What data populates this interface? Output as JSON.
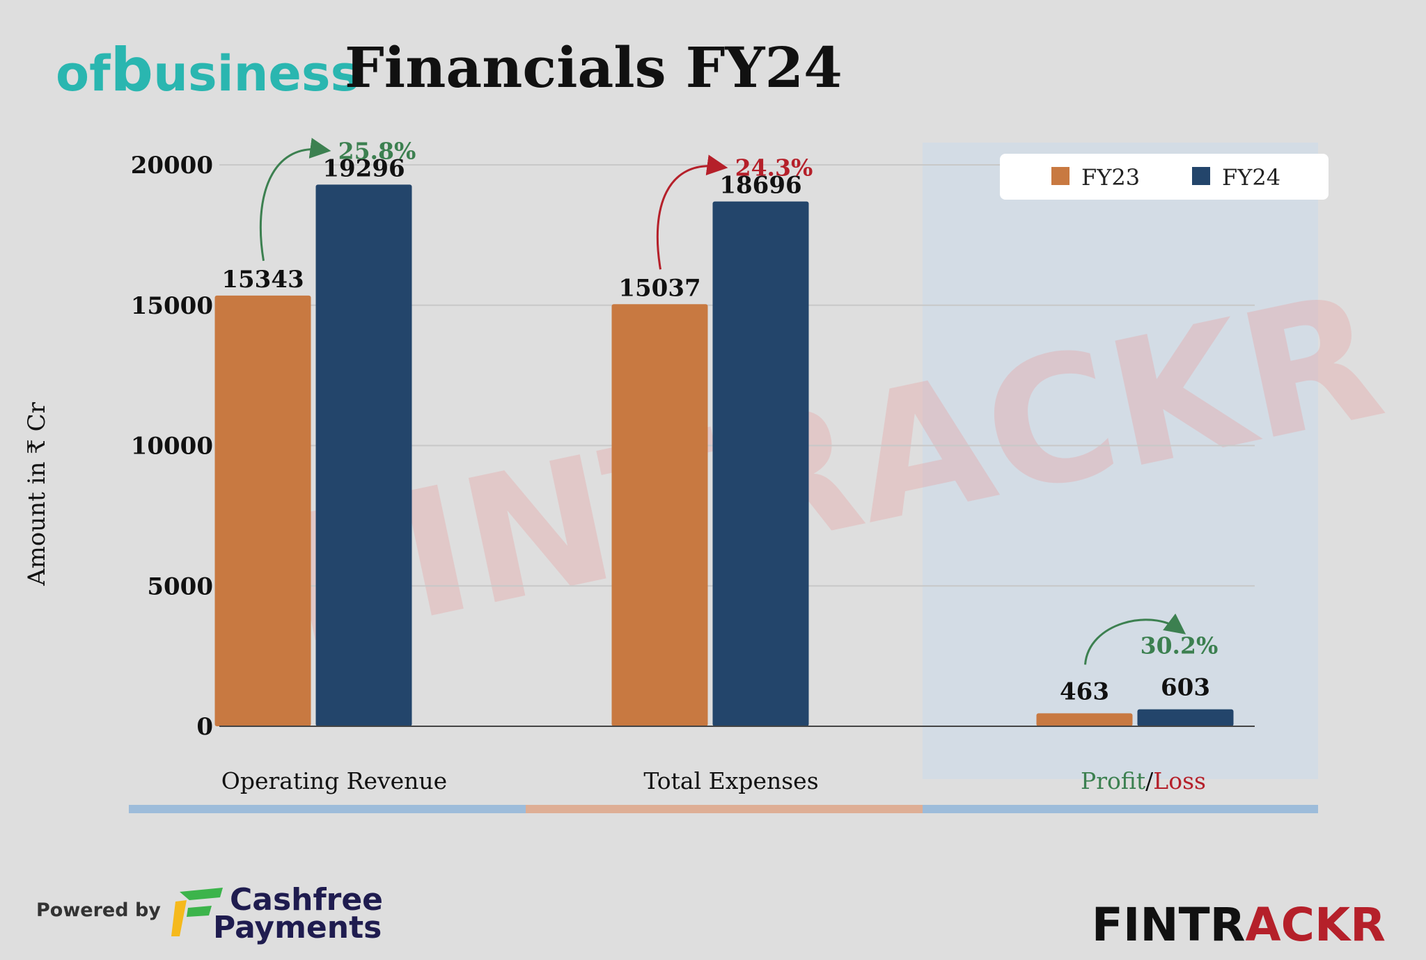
{
  "header": {
    "company_logo_prefix": "of",
    "company_logo_mid": "b",
    "company_logo_suffix": "usiness",
    "title": "Financials FY24"
  },
  "colors": {
    "fy23": "#c87941",
    "fy24": "#23456b",
    "growth_positive": "#3c8050",
    "growth_negative": "#b5202a",
    "logo_teal": "#2ab6b0",
    "watermark_red": "#e8a0a0",
    "underline_blue": "#9dbcda",
    "underline_orange": "#deae95",
    "fintrackr_dark": "#111111",
    "fintrackr_red": "#b5202a",
    "cashfree_navy": "#1f1c4f"
  },
  "chart_data": {
    "type": "bar",
    "ylabel": "Amount in ₹ Cr",
    "ylim": [
      0,
      20000
    ],
    "yticks": [
      0,
      5000,
      10000,
      15000,
      20000
    ],
    "grid": true,
    "legend_position": "top-right",
    "categories": [
      "Operating Revenue",
      "Total Expenses",
      "Profit/Loss"
    ],
    "category_label_parts": [
      [
        {
          "text": "Operating Revenue",
          "color": "#111111"
        }
      ],
      [
        {
          "text": "Total Expenses",
          "color": "#111111"
        }
      ],
      [
        {
          "text": "Profit",
          "color": "#3c8050"
        },
        {
          "text": "/",
          "color": "#111111"
        },
        {
          "text": "Loss",
          "color": "#b5202a"
        }
      ]
    ],
    "series": [
      {
        "name": "FY23",
        "values": [
          15343,
          15037,
          463
        ]
      },
      {
        "name": "FY24",
        "values": [
          19296,
          18696,
          603
        ]
      }
    ],
    "value_label_colors": [
      [
        "#111111",
        "#111111"
      ],
      [
        "#111111",
        "#111111"
      ],
      [
        "#3c8050",
        "#3c8050"
      ]
    ],
    "growth": [
      {
        "label": "25.8%",
        "tone": "positive"
      },
      {
        "label": "24.3%",
        "tone": "negative"
      },
      {
        "label": "30.2%",
        "tone": "positive"
      }
    ]
  },
  "watermark": {
    "text": "FINTRACKR"
  },
  "footer": {
    "powered_by": "Powered by",
    "sponsor_line1": "Cashfree",
    "sponsor_line2": "Payments",
    "brand_part1": "FINTR",
    "brand_part2": "ACKR"
  }
}
